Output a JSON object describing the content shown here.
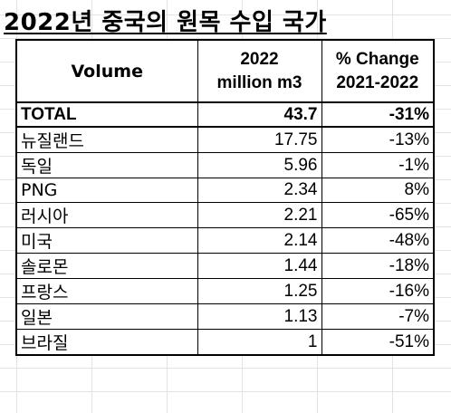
{
  "title": "2022년 중국의 원목 수입 국가",
  "headers": {
    "col1": "Volume",
    "col2_line1": "2022",
    "col2_line2": "million m3",
    "col3_line1": "% Change",
    "col3_line2": "2021-2022"
  },
  "total": {
    "label": "TOTAL",
    "volume": "43.7",
    "change": "-31%"
  },
  "rows": [
    {
      "country": "뉴질랜드",
      "volume": "17.75",
      "change": "-13%"
    },
    {
      "country": "독일",
      "volume": "5.96",
      "change": "-1%"
    },
    {
      "country": "PNG",
      "volume": "2.34",
      "change": "8%"
    },
    {
      "country": "러시아",
      "volume": "2.21",
      "change": "-65%"
    },
    {
      "country": "미국",
      "volume": "2.14",
      "change": "-48%"
    },
    {
      "country": "솔로몬",
      "volume": "1.44",
      "change": "-18%"
    },
    {
      "country": "프랑스",
      "volume": "1.25",
      "change": "-16%"
    },
    {
      "country": "일본",
      "volume": "1.13",
      "change": "-7%"
    },
    {
      "country": "브라질",
      "volume": "1",
      "change": "-51%"
    }
  ]
}
